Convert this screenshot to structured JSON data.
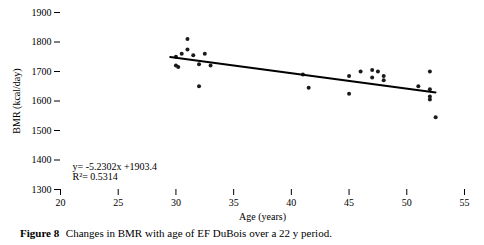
{
  "chart_data": {
    "type": "scatter",
    "xlabel": "Age (years)",
    "ylabel": "BMR (kcal/day)",
    "series": [
      {
        "type": "scatter",
        "color": "#1a1a1a",
        "marker": "circle",
        "x": [
          30,
          30,
          30.2,
          30.5,
          31,
          31,
          31.5,
          32,
          32,
          32.5,
          33,
          41,
          41.5,
          45,
          45,
          46,
          47,
          47,
          47.5,
          48,
          48,
          51,
          52,
          52,
          52,
          52,
          52.5
        ],
        "values": [
          1750,
          1720,
          1715,
          1760,
          1775,
          1810,
          1755,
          1725,
          1650,
          1760,
          1720,
          1690,
          1645,
          1685,
          1625,
          1700,
          1680,
          1705,
          1700,
          1685,
          1670,
          1650,
          1700,
          1640,
          1615,
          1605,
          1545
        ]
      },
      {
        "type": "line",
        "color": "#000000",
        "line_style": "solid",
        "x": [
          29.5,
          52.5
        ],
        "values": [
          1749.1091,
          1628.8145
        ]
      }
    ],
    "annotations": [
      "y= -5.2302x +1903.4",
      "R²= 0.5314"
    ],
    "caption": [
      "Figure 8",
      "Changes in BMR with age of EF DuBois over a 22 y period."
    ],
    "xlim": [
      20,
      55
    ],
    "ylim": [
      1300,
      1900
    ],
    "xticks": [
      20,
      25,
      30,
      35,
      40,
      45,
      50,
      55
    ],
    "yticks": [
      1300,
      1400,
      1500,
      1600,
      1700,
      1800,
      1900
    ],
    "grid": false
  }
}
